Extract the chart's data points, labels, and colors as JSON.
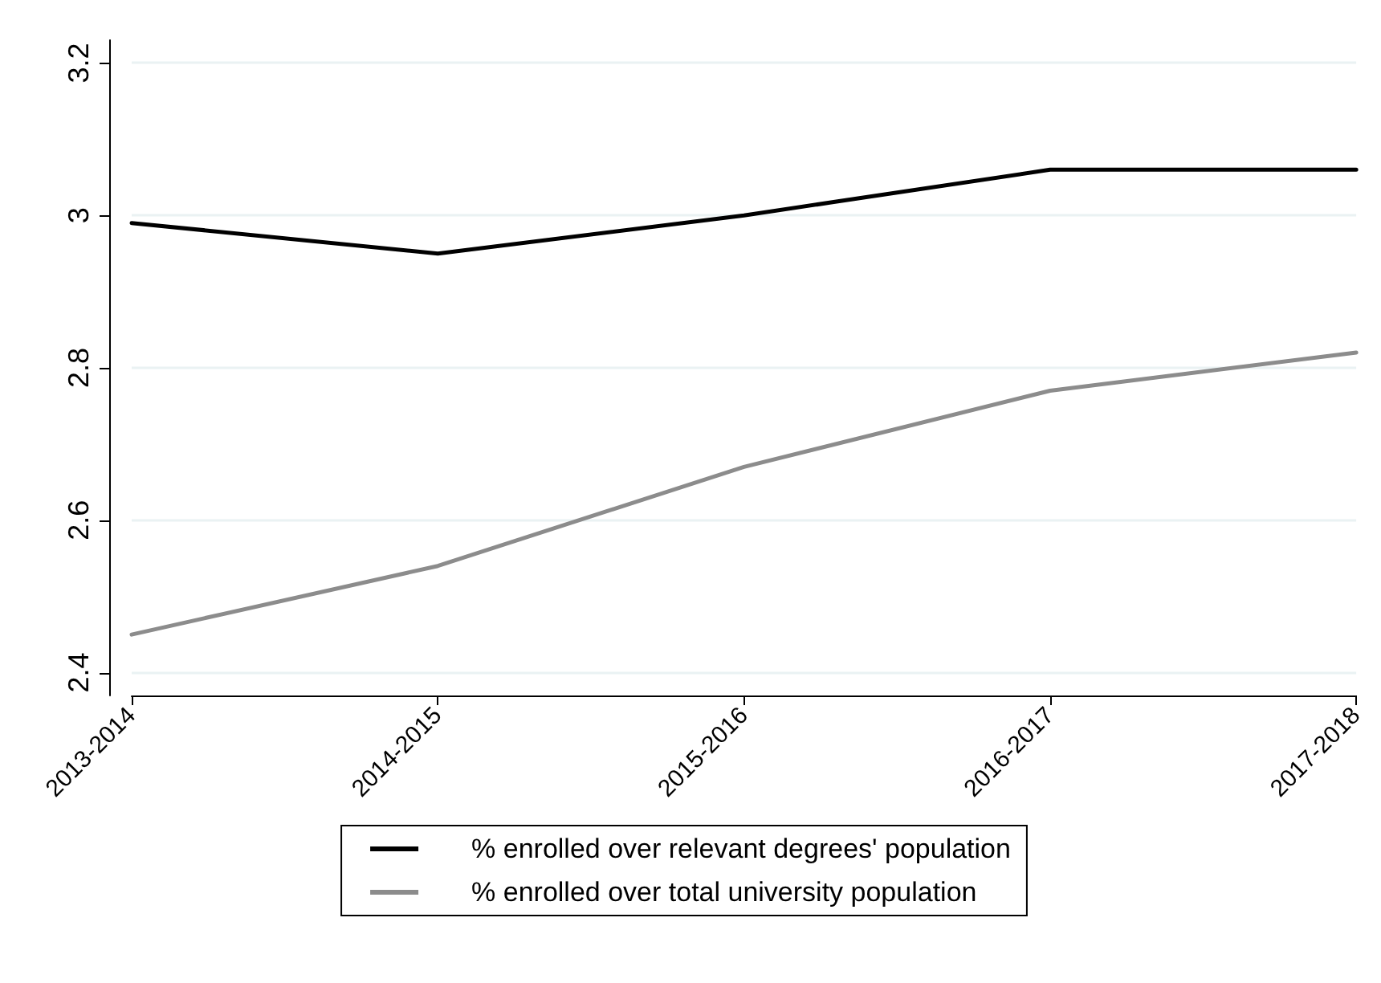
{
  "chart_data": {
    "type": "line",
    "categories": [
      "2013-2014",
      "2014-2015",
      "2015-2016",
      "2016-2017",
      "2017-2018"
    ],
    "series": [
      {
        "name": "% enrolled over relevant degrees' population",
        "color": "#000000",
        "values": [
          2.99,
          2.95,
          3.0,
          3.06,
          3.06
        ]
      },
      {
        "name": "% enrolled over total university population",
        "color": "#8c8c8c",
        "values": [
          2.45,
          2.54,
          2.67,
          2.77,
          2.82
        ]
      }
    ],
    "ylim": [
      2.37,
      3.23
    ],
    "yticks": [
      2.4,
      2.6,
      2.8,
      3,
      3.2
    ],
    "grid": "y",
    "legend": "bottom",
    "marker": "none",
    "line_style": "solid"
  }
}
